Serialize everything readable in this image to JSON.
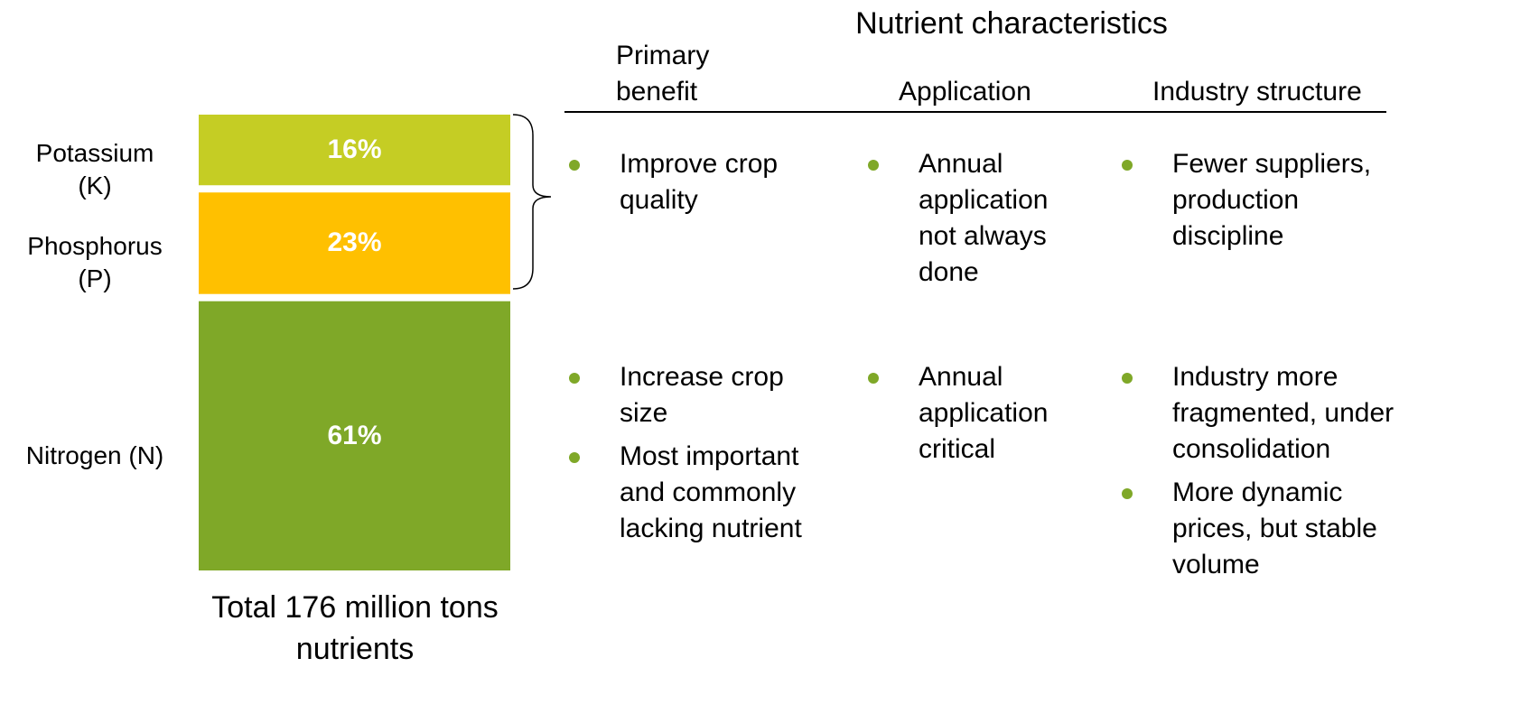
{
  "chart_data": {
    "type": "stacked_bar",
    "series": [
      {
        "name": "Nitrogen (N)",
        "color": "#7fa828",
        "values": [
          61
        ],
        "value_labels": [
          "61%"
        ]
      },
      {
        "name": "Phosphorus (P)",
        "color": "#ffc000",
        "values": [
          23
        ],
        "value_labels": [
          "23%"
        ]
      },
      {
        "name": "Potassium (K)",
        "color": "#c5cd24",
        "values": [
          16
        ],
        "value_labels": [
          "16%"
        ]
      }
    ],
    "ylim": [
      0,
      100
    ],
    "caption": "Total 176 million tons nutrients"
  },
  "table": {
    "title": "Nutrient characteristics",
    "columns": [
      "Primary benefit",
      "Application",
      "Industry structure"
    ],
    "rows": [
      [
        [
          "Improve crop quality"
        ],
        [
          "Annual application not always done"
        ],
        [
          "Fewer suppliers, production discipline"
        ]
      ],
      [
        [
          "Increase crop size",
          "Most important and commonly lacking nutrient"
        ],
        [
          "Annual application critical"
        ],
        [
          "Industry more fragmented, under consolidation",
          "More dynamic prices, but stable volume"
        ]
      ]
    ]
  }
}
